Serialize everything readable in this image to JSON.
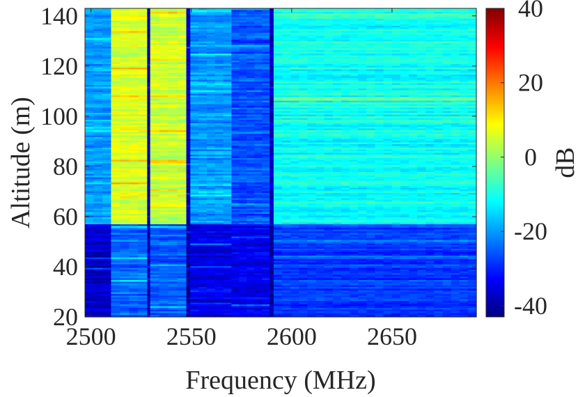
{
  "chart_data": {
    "type": "heatmap",
    "xlabel": "Frequency (MHz)",
    "ylabel": "Altitude (m)",
    "xlim": [
      2497,
      2692
    ],
    "ylim": [
      20,
      143
    ],
    "xticks": [
      2500,
      2550,
      2600,
      2650
    ],
    "yticks": [
      20,
      40,
      60,
      80,
      100,
      120,
      140
    ],
    "colorbar": {
      "label": "dB",
      "range": [
        -43,
        40
      ],
      "ticks": [
        40,
        20,
        0,
        -20,
        -40
      ],
      "colormap": "jet"
    },
    "transition_altitude_m": 57,
    "frequency_bands": [
      {
        "from": 2497,
        "to": 2510,
        "above_dB": -20,
        "below_dB": -37
      },
      {
        "from": 2510,
        "to": 2528,
        "above_dB": 6,
        "below_dB": -24
      },
      {
        "from": 2528,
        "to": 2529.5,
        "above_dB": -38,
        "below_dB": -40
      },
      {
        "from": 2529.5,
        "to": 2547.5,
        "above_dB": 4,
        "below_dB": -25
      },
      {
        "from": 2547.5,
        "to": 2549.5,
        "above_dB": -38,
        "below_dB": -40
      },
      {
        "from": 2549.5,
        "to": 2570,
        "above_dB": -20,
        "below_dB": -35
      },
      {
        "from": 2570,
        "to": 2589,
        "above_dB": -26,
        "below_dB": -34
      },
      {
        "from": 2589,
        "to": 2591,
        "above_dB": -38,
        "below_dB": -40
      },
      {
        "from": 2591,
        "to": 2692,
        "above_dB": -11,
        "below_dB": -28
      }
    ]
  }
}
